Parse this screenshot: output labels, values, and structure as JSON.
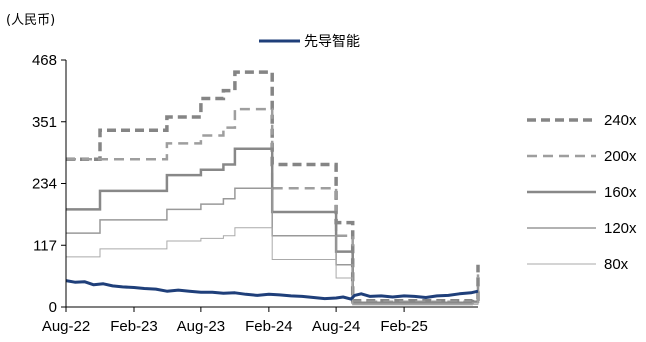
{
  "chart_data": {
    "type": "line",
    "unit_label": "(人民币)",
    "y_axis": {
      "ticks": [
        0,
        117,
        234,
        351,
        468
      ],
      "ylim": [
        0,
        468
      ]
    },
    "x_axis": {
      "ticks": [
        "Aug-22",
        "Feb-23",
        "Aug-23",
        "Feb-24",
        "Aug-24",
        "Feb-25"
      ],
      "tick_dates": [
        "2022-08-01",
        "2023-02-01",
        "2023-08-01",
        "2024-02-01",
        "2024-08-01",
        "2025-02-01"
      ],
      "xlim": [
        "2022-08-01",
        "2025-08-20"
      ]
    },
    "price_series": {
      "name": "先导智能",
      "color": "#1f3f7a",
      "points": [
        [
          "2022-08-01",
          50
        ],
        [
          "2022-08-25",
          47
        ],
        [
          "2022-09-20",
          48
        ],
        [
          "2022-10-15",
          42
        ],
        [
          "2022-11-10",
          44
        ],
        [
          "2022-12-05",
          40
        ],
        [
          "2023-01-01",
          38
        ],
        [
          "2023-02-01",
          37
        ],
        [
          "2023-03-01",
          35
        ],
        [
          "2023-04-01",
          34
        ],
        [
          "2023-05-01",
          30
        ],
        [
          "2023-06-01",
          32
        ],
        [
          "2023-07-01",
          30
        ],
        [
          "2023-08-01",
          28
        ],
        [
          "2023-09-01",
          28
        ],
        [
          "2023-10-01",
          26
        ],
        [
          "2023-11-01",
          27
        ],
        [
          "2023-12-01",
          24
        ],
        [
          "2024-01-01",
          22
        ],
        [
          "2024-02-01",
          24
        ],
        [
          "2024-03-01",
          23
        ],
        [
          "2024-04-01",
          21
        ],
        [
          "2024-05-01",
          20
        ],
        [
          "2024-06-01",
          18
        ],
        [
          "2024-07-01",
          16
        ],
        [
          "2024-08-01",
          17
        ],
        [
          "2024-08-20",
          19
        ],
        [
          "2024-09-10",
          15
        ],
        [
          "2024-09-20",
          22
        ],
        [
          "2024-10-08",
          25
        ],
        [
          "2024-11-01",
          20
        ],
        [
          "2024-12-01",
          21
        ],
        [
          "2025-01-01",
          19
        ],
        [
          "2025-02-01",
          21
        ],
        [
          "2025-03-01",
          20
        ],
        [
          "2025-04-01",
          18
        ],
        [
          "2025-05-01",
          21
        ],
        [
          "2025-06-01",
          22
        ],
        [
          "2025-07-01",
          25
        ],
        [
          "2025-08-01",
          27
        ],
        [
          "2025-08-20",
          30
        ]
      ]
    },
    "band_periods": [
      "2022-08-01",
      "2022-11-01",
      "2023-05-01",
      "2023-08-01",
      "2023-10-01",
      "2023-11-01",
      "2024-02-01",
      "2024-02-10",
      "2024-06-01",
      "2024-08-01",
      "2024-09-15",
      "2025-08-05",
      "2025-08-20"
    ],
    "band_series": [
      {
        "name": "240x",
        "style": "dashed",
        "color": "#858585",
        "width": 3.5,
        "values": [
          280,
          335,
          360,
          395,
          410,
          445,
          445,
          270,
          270,
          160,
          12,
          15,
          80
        ]
      },
      {
        "name": "200x",
        "style": "dashed",
        "color": "#9e9e9e",
        "width": 2.5,
        "values": [
          280,
          280,
          310,
          325,
          340,
          375,
          375,
          225,
          225,
          135,
          10,
          12,
          70
        ]
      },
      {
        "name": "160x",
        "style": "solid",
        "color": "#888888",
        "width": 2.5,
        "values": [
          185,
          220,
          250,
          260,
          270,
          300,
          300,
          180,
          180,
          105,
          8,
          10,
          55
        ]
      },
      {
        "name": "120x",
        "style": "solid",
        "color": "#999999",
        "width": 1.5,
        "values": [
          140,
          165,
          185,
          195,
          205,
          225,
          225,
          135,
          135,
          80,
          6,
          8,
          40
        ]
      },
      {
        "name": "80x",
        "style": "solid",
        "color": "#aaaaaa",
        "width": 1,
        "values": [
          95,
          110,
          125,
          130,
          135,
          150,
          150,
          90,
          90,
          55,
          4,
          5,
          30
        ]
      }
    ]
  }
}
